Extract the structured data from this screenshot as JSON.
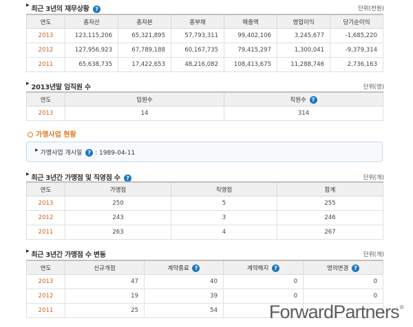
{
  "financial": {
    "title": "최근 3년의 재무상황",
    "unit": "단위(천원)",
    "headers": [
      "연도",
      "총자산",
      "총자본",
      "총부채",
      "매출액",
      "영업이익",
      "당기순이익"
    ],
    "rows": [
      [
        "2013",
        "123,115,206",
        "65,321,895",
        "57,793,311",
        "99,402,106",
        "3,245,677",
        "-1,685,220"
      ],
      [
        "2012",
        "127,956,923",
        "67,789,188",
        "60,167,735",
        "79,415,297",
        "1,300,041",
        "-9,379,314"
      ],
      [
        "2011",
        "65,638,735",
        "17,422,653",
        "48,216,082",
        "108,413,675",
        "11,288,746",
        "2,736,163"
      ]
    ]
  },
  "staff": {
    "title": "2013년말 임직원 수",
    "unit": "단위(명)",
    "headers": [
      "연도",
      "임원수",
      "직원수"
    ],
    "rows": [
      [
        "2013",
        "14",
        "314"
      ]
    ]
  },
  "franchise": {
    "title": "가맹사업 현황",
    "start_label": "가맹사업 개시일",
    "start_value": ": 1989-04-11"
  },
  "stores": {
    "title": "최근 3년간 가맹점 및 직영점 수",
    "unit": "단위(개)",
    "headers": [
      "연도",
      "가맹점",
      "직영점",
      "합계"
    ],
    "rows": [
      [
        "2013",
        "250",
        "5",
        "255"
      ],
      [
        "2012",
        "243",
        "3",
        "246"
      ],
      [
        "2011",
        "263",
        "4",
        "267"
      ]
    ]
  },
  "changes": {
    "title": "최근 3년간 가맹점 수 변동",
    "unit": "단위(개)",
    "headers": [
      "연도",
      "신규개점",
      "계약종료",
      "계약해지",
      "명의변경"
    ],
    "rows": [
      [
        "2013",
        "47",
        "40",
        "0",
        "0"
      ],
      [
        "2012",
        "19",
        "39",
        "0",
        "0"
      ],
      [
        "2011",
        "25",
        "54",
        "",
        ""
      ]
    ]
  },
  "watermark": {
    "text": "ForwardPartners",
    "mark": "®"
  },
  "icons": {
    "help": "question-icon",
    "bullet": "triangle-bullet-icon",
    "section_dot": "circle-dot-icon"
  },
  "colors": {
    "year": "#d0611e",
    "section_orange": "#e07a20",
    "help_icon": "#1b77c0"
  }
}
